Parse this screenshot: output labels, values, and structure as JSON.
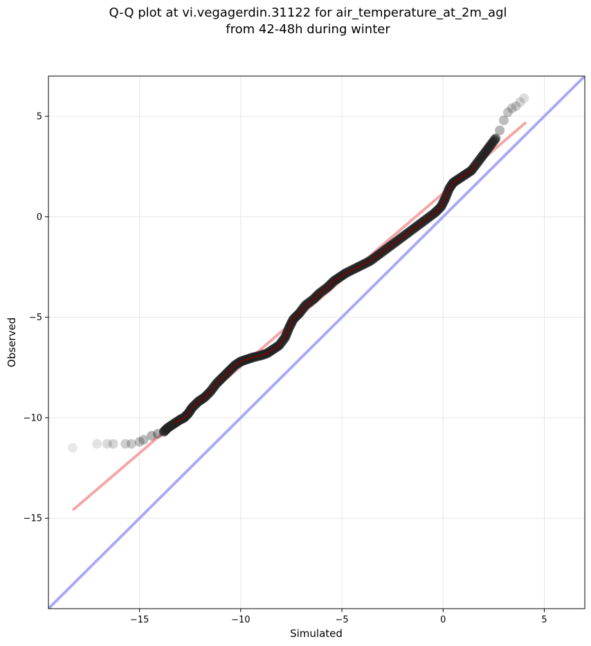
{
  "chart_data": {
    "type": "scatter",
    "title": "Q-Q plot at vi.vegagerdin.31122 for air_temperature_at_2m_agl",
    "subtitle": "from 42-48h during winter",
    "xlabel": "Simulated",
    "ylabel": "Observed",
    "xlim": [
      -19.5,
      7.0
    ],
    "ylim": [
      -19.5,
      7.0
    ],
    "x_ticks": [
      -15,
      -10,
      -5,
      0,
      5
    ],
    "y_ticks": [
      -15,
      -10,
      -5,
      0,
      5
    ],
    "x_tick_labels": [
      "−15",
      "−10",
      "−5",
      "0",
      "5"
    ],
    "y_tick_labels": [
      "−15",
      "−10",
      "−5",
      "0",
      "5"
    ],
    "grid": true,
    "colors": {
      "points": "#222222",
      "fit_line": "#f4a6a6",
      "identity_line": "#a9a9f5",
      "dense_trace": "#8b0000"
    },
    "series": [
      {
        "kind": "quantile-points",
        "points": [
          [
            -18.3,
            -11.5
          ],
          [
            -17.1,
            -11.3
          ],
          [
            -16.6,
            -11.3
          ],
          [
            -16.3,
            -11.3
          ],
          [
            -15.7,
            -11.3
          ],
          [
            -15.4,
            -11.3
          ],
          [
            -15.0,
            -11.2
          ],
          [
            -14.8,
            -11.1
          ],
          [
            -14.4,
            -10.9
          ],
          [
            -14.1,
            -10.8
          ],
          [
            -13.8,
            -10.7
          ],
          [
            -13.6,
            -10.5
          ],
          [
            -13.3,
            -10.3
          ],
          [
            -13.0,
            -10.1
          ],
          [
            -12.8,
            -10.0
          ],
          [
            -12.6,
            -9.8
          ],
          [
            -12.4,
            -9.5
          ],
          [
            -12.1,
            -9.2
          ],
          [
            -11.8,
            -9.0
          ],
          [
            -11.5,
            -8.7
          ],
          [
            -11.2,
            -8.3
          ],
          [
            -10.9,
            -8.0
          ],
          [
            -10.6,
            -7.7
          ],
          [
            -10.3,
            -7.4
          ],
          [
            -10.0,
            -7.2
          ],
          [
            -9.7,
            -7.1
          ],
          [
            -9.4,
            -7.0
          ],
          [
            -9.0,
            -6.9
          ],
          [
            -8.7,
            -6.8
          ],
          [
            -8.4,
            -6.6
          ],
          [
            -8.1,
            -6.4
          ],
          [
            -7.8,
            -6.0
          ],
          [
            -7.6,
            -5.5
          ],
          [
            -7.4,
            -5.1
          ],
          [
            -7.1,
            -4.8
          ],
          [
            -6.8,
            -4.4
          ],
          [
            -6.4,
            -4.1
          ],
          [
            -6.1,
            -3.8
          ],
          [
            -5.7,
            -3.5
          ],
          [
            -5.4,
            -3.2
          ],
          [
            -5.1,
            -3.0
          ],
          [
            -4.8,
            -2.8
          ],
          [
            -4.4,
            -2.6
          ],
          [
            -4.0,
            -2.4
          ],
          [
            -3.6,
            -2.2
          ],
          [
            -3.2,
            -1.9
          ],
          [
            -2.8,
            -1.6
          ],
          [
            -2.4,
            -1.3
          ],
          [
            -2.0,
            -1.0
          ],
          [
            -1.6,
            -0.7
          ],
          [
            -1.2,
            -0.4
          ],
          [
            -0.8,
            -0.1
          ],
          [
            -0.4,
            0.2
          ],
          [
            -0.1,
            0.5
          ],
          [
            0.1,
            0.9
          ],
          [
            0.3,
            1.4
          ],
          [
            0.5,
            1.7
          ],
          [
            0.8,
            1.9
          ],
          [
            1.1,
            2.1
          ],
          [
            1.4,
            2.3
          ],
          [
            1.7,
            2.7
          ],
          [
            2.0,
            3.1
          ],
          [
            2.3,
            3.5
          ],
          [
            2.6,
            3.9
          ],
          [
            2.8,
            4.3
          ],
          [
            3.0,
            4.8
          ],
          [
            3.2,
            5.2
          ],
          [
            3.4,
            5.4
          ],
          [
            3.6,
            5.5
          ],
          [
            3.8,
            5.7
          ],
          [
            4.0,
            5.9
          ]
        ]
      },
      {
        "kind": "fit-line",
        "x": [
          -18.3,
          4.1
        ],
        "y": [
          -14.6,
          4.7
        ]
      },
      {
        "kind": "identity-line",
        "x": [
          -19.5,
          7.0
        ],
        "y": [
          -19.5,
          7.0
        ]
      }
    ]
  }
}
